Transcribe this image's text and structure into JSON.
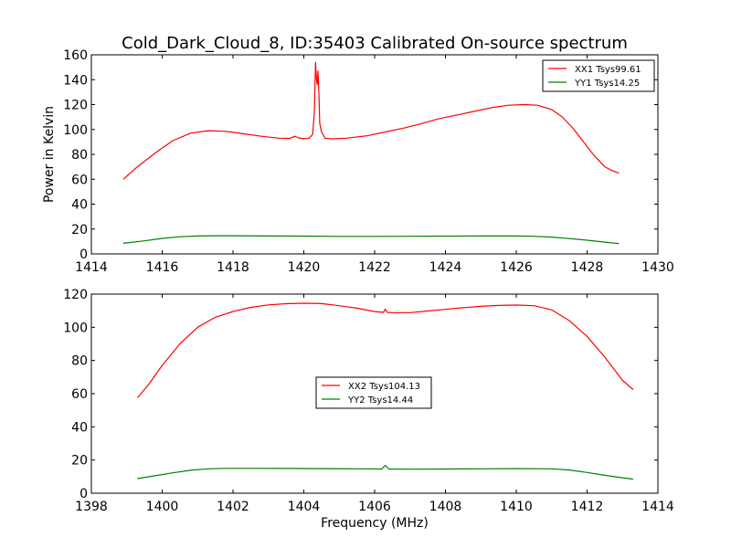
{
  "chart_data": [
    {
      "type": "line",
      "title": "Cold_Dark_Cloud_8, ID:35403 Calibrated On-source spectrum",
      "xlabel": "",
      "ylabel": "Power in Kelvin",
      "xlim": [
        1414,
        1430
      ],
      "ylim": [
        0,
        160
      ],
      "xticks": [
        "1414",
        "1416",
        "1418",
        "1420",
        "1422",
        "1424",
        "1426",
        "1428",
        "1430"
      ],
      "yticks": [
        "0",
        "20",
        "40",
        "60",
        "80",
        "100",
        "120",
        "140",
        "160"
      ],
      "grid": false,
      "legend_position": "top-right",
      "series": [
        {
          "name": "XX1 Tsys99.61",
          "color": "#ff0000",
          "x": [
            1414.9,
            1415.3,
            1415.8,
            1416.3,
            1416.8,
            1417.3,
            1417.8,
            1418.3,
            1418.8,
            1419.3,
            1419.6,
            1419.75,
            1419.85,
            1420.0,
            1420.15,
            1420.25,
            1420.3,
            1420.33,
            1420.36,
            1420.38,
            1420.4,
            1420.43,
            1420.45,
            1420.5,
            1420.6,
            1420.8,
            1421.2,
            1421.8,
            1422.3,
            1422.8,
            1423.3,
            1423.8,
            1424.3,
            1424.8,
            1425.3,
            1425.8,
            1426.2,
            1426.6,
            1427.0,
            1427.3,
            1427.6,
            1427.9,
            1428.2,
            1428.5,
            1428.7,
            1428.9
          ],
          "y": [
            60,
            70,
            81,
            91,
            97,
            99,
            98.5,
            96.5,
            94.5,
            93,
            92.8,
            94.5,
            93.2,
            92.5,
            93,
            96,
            115,
            154,
            140,
            136,
            147,
            125,
            105,
            98,
            93,
            92.5,
            93,
            95,
            98,
            101,
            104.5,
            108.5,
            111.5,
            114.5,
            117.5,
            119.5,
            120,
            119.5,
            116,
            110,
            101,
            90,
            79,
            70,
            67,
            65
          ]
        },
        {
          "name": "YY1 Tsys14.25",
          "color": "#008000",
          "x": [
            1414.9,
            1415.5,
            1416.0,
            1416.5,
            1417.0,
            1417.5,
            1418.0,
            1419.0,
            1420.0,
            1421.0,
            1422.0,
            1423.0,
            1424.0,
            1425.0,
            1426.0,
            1426.5,
            1427.0,
            1427.5,
            1428.0,
            1428.5,
            1428.9
          ],
          "y": [
            8.5,
            10.5,
            12.5,
            13.8,
            14.4,
            14.6,
            14.6,
            14.4,
            14.3,
            14.1,
            14.1,
            14.2,
            14.3,
            14.4,
            14.4,
            14.2,
            13.5,
            12.3,
            11.0,
            9.5,
            8.3
          ]
        }
      ]
    },
    {
      "type": "line",
      "title": "",
      "xlabel": "Frequency (MHz)",
      "ylabel": "",
      "xlim": [
        1398,
        1414
      ],
      "ylim": [
        0,
        120
      ],
      "xticks": [
        "1398",
        "1400",
        "1402",
        "1404",
        "1406",
        "1408",
        "1410",
        "1412",
        "1414"
      ],
      "yticks": [
        "0",
        "20",
        "40",
        "60",
        "80",
        "100",
        "120"
      ],
      "grid": false,
      "legend_position": "center",
      "series": [
        {
          "name": "XX2 Tsys104.13",
          "color": "#ff0000",
          "x": [
            1399.3,
            1399.6,
            1400.0,
            1400.5,
            1401.0,
            1401.5,
            1402.0,
            1402.5,
            1403.0,
            1403.5,
            1404.0,
            1404.5,
            1405.0,
            1405.5,
            1406.0,
            1406.25,
            1406.3,
            1406.35,
            1406.5,
            1407.0,
            1407.5,
            1408.0,
            1408.5,
            1409.0,
            1409.5,
            1410.0,
            1410.5,
            1411.0,
            1411.5,
            1412.0,
            1412.5,
            1413.0,
            1413.3
          ],
          "y": [
            57.5,
            65,
            77,
            90,
            100,
            106,
            109.5,
            112,
            113.5,
            114.2,
            114.5,
            114.3,
            113,
            111.5,
            109.5,
            109,
            111,
            109,
            108.8,
            108.8,
            109.8,
            110.8,
            111.8,
            112.6,
            113.2,
            113.4,
            113,
            110.5,
            104,
            94.5,
            82,
            68,
            62.5
          ]
        },
        {
          "name": "YY2 Tsys14.44",
          "color": "#008000",
          "x": [
            1399.3,
            1399.8,
            1400.3,
            1400.8,
            1401.3,
            1401.8,
            1402.5,
            1403.5,
            1404.5,
            1405.5,
            1406.2,
            1406.3,
            1406.4,
            1407.0,
            1408.0,
            1409.0,
            1410.0,
            1411.0,
            1411.5,
            1412.0,
            1412.5,
            1413.0,
            1413.3
          ],
          "y": [
            8.8,
            10.5,
            12.3,
            13.8,
            14.7,
            15.0,
            15.0,
            14.9,
            14.8,
            14.7,
            14.6,
            16.8,
            14.6,
            14.5,
            14.6,
            14.7,
            14.8,
            14.7,
            14.0,
            12.5,
            10.8,
            9.3,
            8.5
          ]
        }
      ]
    }
  ]
}
